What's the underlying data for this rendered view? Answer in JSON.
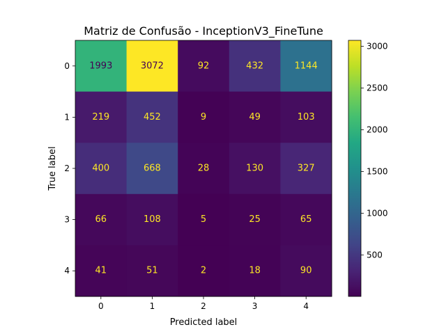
{
  "chart_data": {
    "type": "heatmap",
    "title": "Matriz de Confusão - InceptionV3_FineTune",
    "xlabel": "Predicted label",
    "ylabel": "True label",
    "x_categories": [
      "0",
      "1",
      "2",
      "3",
      "4"
    ],
    "y_categories": [
      "0",
      "1",
      "2",
      "3",
      "4"
    ],
    "matrix": [
      [
        1993,
        3072,
        92,
        432,
        1144
      ],
      [
        219,
        452,
        9,
        49,
        103
      ],
      [
        400,
        668,
        28,
        130,
        327
      ],
      [
        66,
        108,
        5,
        25,
        65
      ],
      [
        41,
        51,
        2,
        18,
        90
      ]
    ],
    "colormap": "viridis",
    "colorbar": {
      "range": [
        2,
        3072
      ],
      "ticks": [
        "500",
        "1000",
        "1500",
        "2000",
        "2500",
        "3000"
      ]
    },
    "text_colors": {
      "light": "#fde725",
      "dark": "#440154"
    }
  }
}
